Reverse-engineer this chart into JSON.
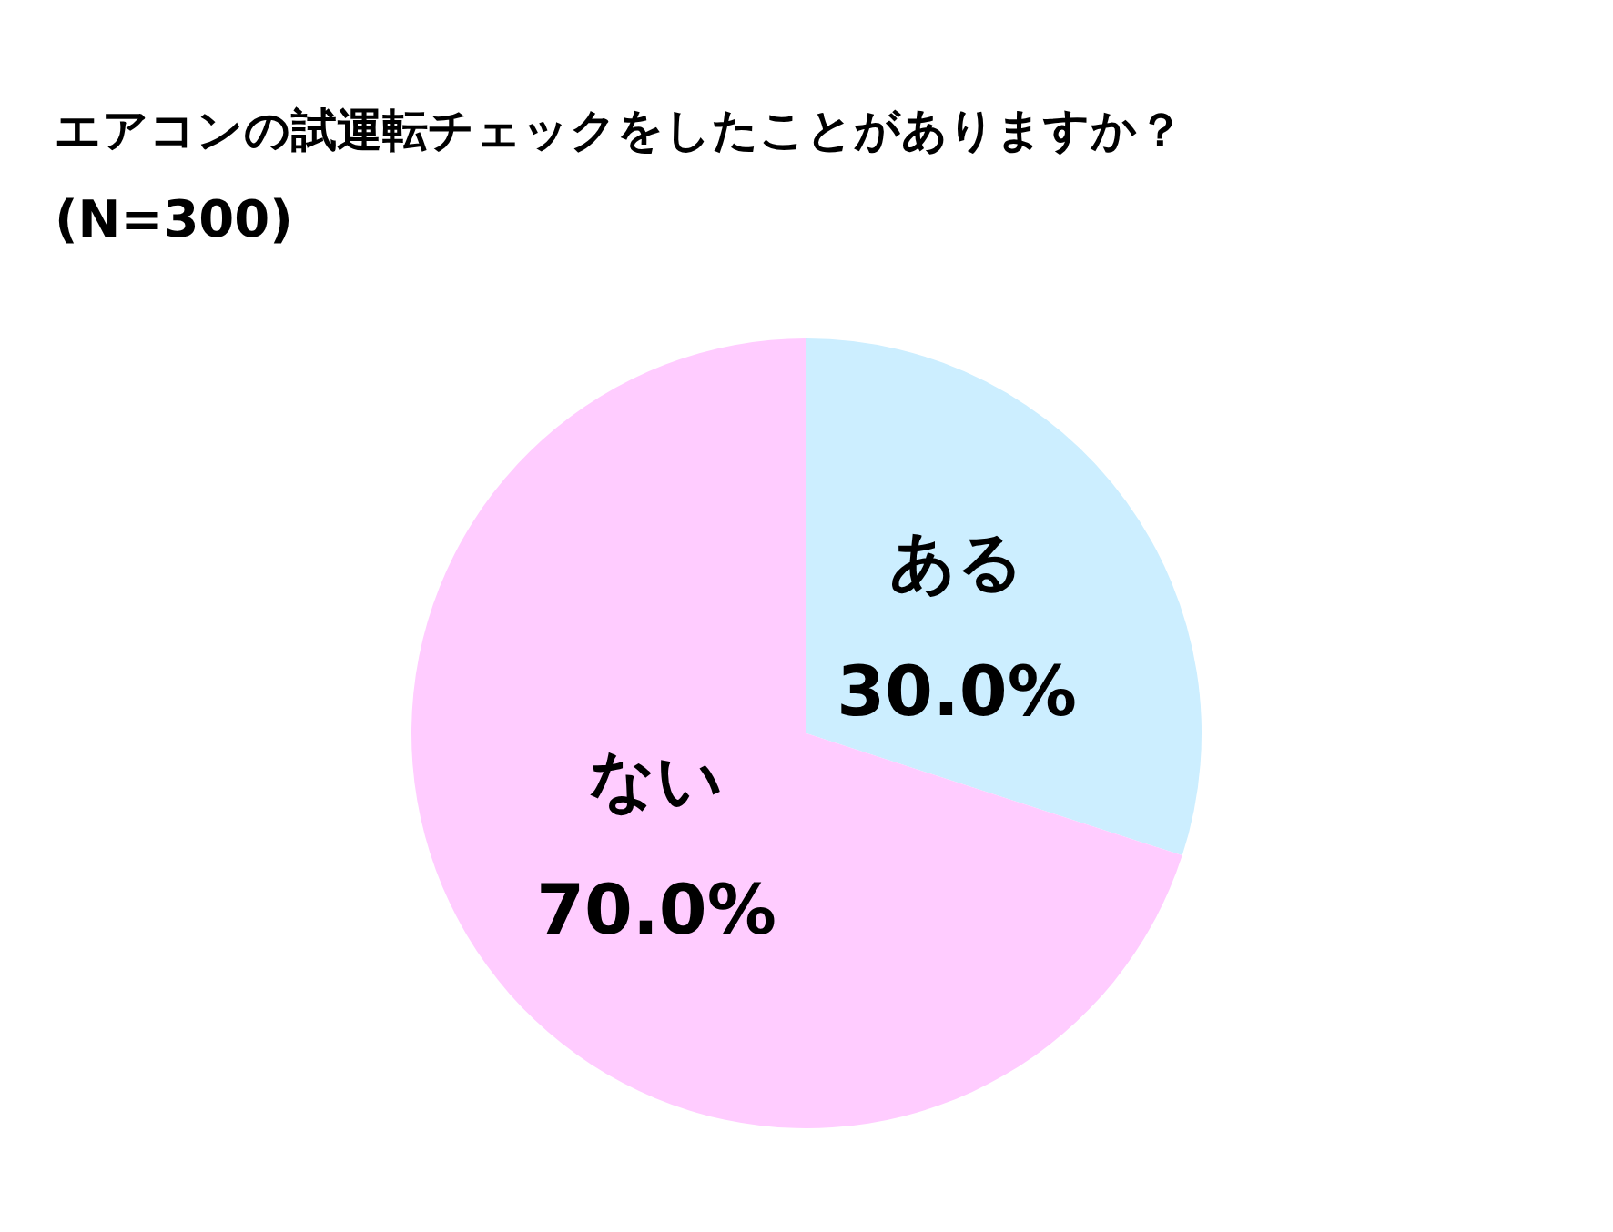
{
  "chart_data": {
    "type": "pie",
    "title": "エアコンの試運転チェックをしたことがありますか？",
    "subtitle": "(N=300)",
    "categories": [
      "ある",
      "ない"
    ],
    "values": [
      30,
      70
    ],
    "colors": [
      "#cceeff",
      "#ffccff"
    ],
    "value_labels": [
      "30.0%",
      "70.0%"
    ]
  }
}
